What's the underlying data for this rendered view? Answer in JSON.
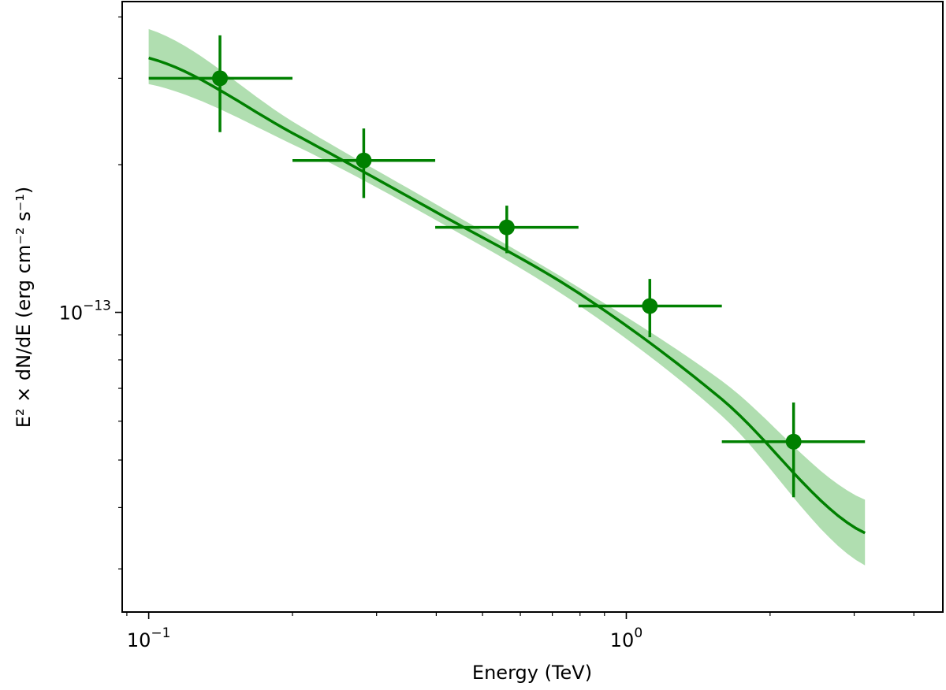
{
  "chart_data": {
    "type": "scatter",
    "title": "",
    "xlabel": "Energy (TeV)",
    "ylabel": "E² × dN/dE (erg cm⁻² s⁻¹)",
    "xscale": "log",
    "yscale": "log",
    "xlim": [
      0.088,
      4.6
    ],
    "ylim": [
      2.45e-14,
      4.3e-13
    ],
    "grid": false,
    "color": "#008000",
    "band_color": "#8fd08f",
    "x_ticks": [
      {
        "value": 0.1,
        "base": "10",
        "exp": "−1"
      },
      {
        "value": 1.0,
        "base": "10",
        "exp": "0"
      }
    ],
    "y_ticks": [
      {
        "value": 1e-13,
        "base": "10",
        "exp": "−13"
      }
    ],
    "points": [
      {
        "x": 0.141,
        "y": 3e-13,
        "x_low": 0.1,
        "x_high": 0.2,
        "y_low": 2.33e-13,
        "y_high": 3.67e-13
      },
      {
        "x": 0.282,
        "y": 2.04e-13,
        "x_low": 0.2,
        "x_high": 0.398,
        "y_low": 1.71e-13,
        "y_high": 2.37e-13
      },
      {
        "x": 0.562,
        "y": 1.49e-13,
        "x_low": 0.398,
        "x_high": 0.794,
        "y_low": 1.32e-13,
        "y_high": 1.65e-13
      },
      {
        "x": 1.12,
        "y": 1.03e-13,
        "x_low": 0.794,
        "x_high": 1.585,
        "y_low": 8.9e-14,
        "y_high": 1.17e-13
      },
      {
        "x": 2.24,
        "y": 5.45e-14,
        "x_low": 1.585,
        "x_high": 3.16,
        "y_low": 4.2e-14,
        "y_high": 6.55e-14
      }
    ],
    "model_curve": {
      "x": [
        0.1,
        0.2,
        0.4,
        0.8,
        1.6,
        3.16
      ],
      "y": [
        3.3e-13,
        2.32e-13,
        1.6e-13,
        1.09e-13,
        6.6e-14,
        3.55e-14
      ]
    },
    "error_band": {
      "x": [
        0.1,
        0.2,
        0.4,
        0.8,
        1.6,
        3.16
      ],
      "lower": [
        2.92e-13,
        2.2e-13,
        1.54e-13,
        1.03e-13,
        6.1e-14,
        3.05e-14
      ],
      "upper": [
        3.78e-13,
        2.45e-13,
        1.66e-13,
        1.12e-13,
        7.2e-14,
        4.15e-14
      ]
    }
  }
}
